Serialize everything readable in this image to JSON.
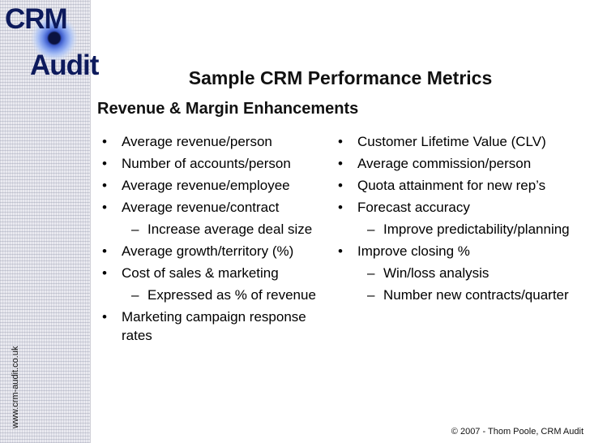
{
  "logo": {
    "line1": "CRM",
    "line2": "Audit"
  },
  "side_url": "www.crm-audit.co.uk",
  "title": "Sample CRM Performance Metrics",
  "subtitle": "Revenue & Margin Enhancements",
  "bullet_marker": "•",
  "dash_marker": "–",
  "left_column": {
    "b1": "Average revenue/person",
    "b2": "Number of accounts/person",
    "b3": "Average revenue/employee",
    "b4": "Average revenue/contract",
    "b4_sub1": "Increase average deal size",
    "b5": "Average growth/territory (%)",
    "b6": "Cost of sales & marketing",
    "b6_sub1": "Expressed as % of revenue",
    "b7": "Marketing campaign response rates"
  },
  "right_column": {
    "b1": "Customer Lifetime Value (CLV)",
    "b2": "Average commission/person",
    "b3": "Quota attainment for new rep’s",
    "b4": "Forecast accuracy",
    "b4_sub1": "Improve predictability/planning",
    "b5": "Improve closing %",
    "b5_sub1": "Win/loss analysis",
    "b5_sub2": "Number new contracts/quarter"
  },
  "footer": {
    "copyright": "© 2007 - Thom Poole, CRM Audit"
  }
}
